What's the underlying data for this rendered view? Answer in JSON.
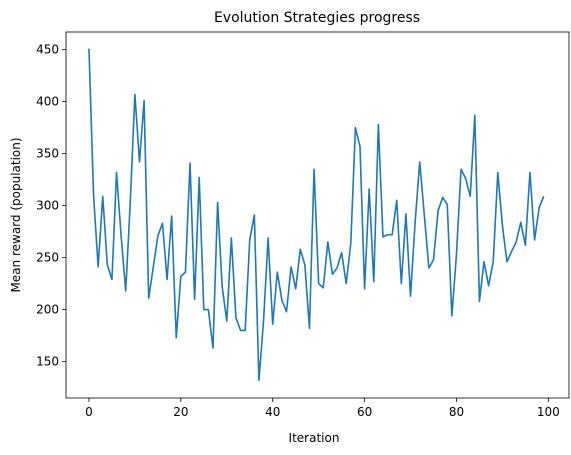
{
  "chart_data": {
    "type": "line",
    "title": "Evolution Strategies progress",
    "xlabel": "Iteration",
    "ylabel": "Mean reward (population)",
    "xlim": [
      -5,
      104.5
    ],
    "ylim": [
      115,
      467
    ],
    "xticks": [
      0,
      20,
      40,
      60,
      80,
      100
    ],
    "yticks": [
      150,
      200,
      250,
      300,
      350,
      400,
      450
    ],
    "grid": false,
    "series": [
      {
        "color": "#1f77b4",
        "x": [
          0,
          1,
          2,
          3,
          4,
          5,
          6,
          7,
          8,
          9,
          10,
          11,
          12,
          13,
          14,
          15,
          16,
          17,
          18,
          19,
          20,
          21,
          22,
          23,
          24,
          25,
          26,
          27,
          28,
          29,
          30,
          31,
          32,
          33,
          34,
          35,
          36,
          37,
          38,
          39,
          40,
          41,
          42,
          43,
          44,
          45,
          46,
          47,
          48,
          49,
          50,
          51,
          52,
          53,
          54,
          55,
          56,
          57,
          58,
          59,
          60,
          61,
          62,
          63,
          64,
          65,
          66,
          67,
          68,
          69,
          70,
          71,
          72,
          73,
          74,
          75,
          76,
          77,
          78,
          79,
          80,
          81,
          82,
          83,
          84,
          85,
          86,
          87,
          88,
          89,
          90,
          91,
          92,
          93,
          94,
          95,
          96,
          97,
          98,
          99
        ],
        "values": [
          451,
          310,
          241,
          309,
          243,
          229,
          332,
          271,
          218,
          304,
          407,
          342,
          401,
          211,
          241,
          271,
          283,
          229,
          290,
          173,
          232,
          236,
          341,
          210,
          327,
          200,
          200,
          163,
          303,
          222,
          189,
          269,
          192,
          180,
          180,
          267,
          291,
          132,
          189,
          269,
          186,
          236,
          209,
          198,
          241,
          220,
          258,
          243,
          182,
          335,
          225,
          221,
          265,
          234,
          240,
          255,
          225,
          264,
          375,
          357,
          220,
          316,
          227,
          378,
          270,
          272,
          272,
          305,
          225,
          292,
          213,
          284,
          342,
          291,
          240,
          248,
          295,
          308,
          301,
          194,
          253,
          335,
          326,
          309,
          387,
          208,
          246,
          223,
          246,
          332,
          281,
          246,
          256,
          265,
          284,
          262,
          332,
          267,
          298,
          309
        ]
      }
    ]
  }
}
